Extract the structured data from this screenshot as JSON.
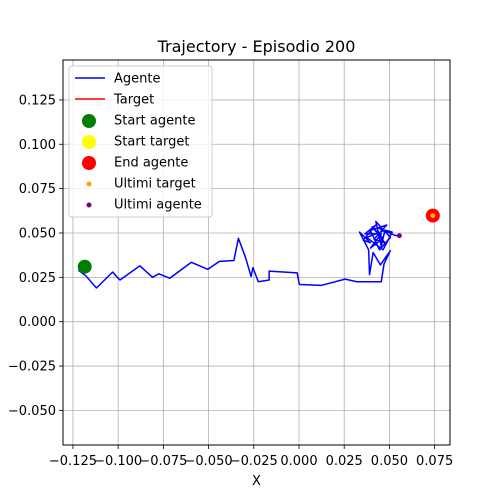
{
  "chart_data": {
    "type": "line",
    "title": "Trajectory - Episodio 200",
    "xlabel": "X",
    "ylabel": "",
    "xlim": [
      -0.1305,
      0.0835
    ],
    "ylim": [
      -0.0695,
      0.1475
    ],
    "grid": true,
    "legend_placement": "top-left",
    "x_ticks": [
      -0.125,
      -0.1,
      -0.075,
      -0.05,
      -0.025,
      0.0,
      0.025,
      0.05,
      0.075
    ],
    "x_tick_labels": [
      "−0.125",
      "−0.100",
      "−0.075",
      "−0.050",
      "−0.025",
      "0.000",
      "0.025",
      "0.050",
      "0.075"
    ],
    "y_ticks": [
      -0.05,
      -0.025,
      0.0,
      0.025,
      0.05,
      0.075,
      0.1,
      0.125
    ],
    "y_tick_labels": [
      "−0.050",
      "−0.025",
      "0.000",
      "0.025",
      "0.050",
      "0.075",
      "0.100",
      "0.125"
    ],
    "legend": [
      {
        "label": "Agente",
        "kind": "line",
        "color": "#0000ff"
      },
      {
        "label": "Target",
        "kind": "line",
        "color": "#ff0000"
      },
      {
        "label": "Start agente",
        "kind": "marker",
        "color": "#008000",
        "size": "large"
      },
      {
        "label": "Start target",
        "kind": "marker",
        "color": "#ffff00",
        "size": "large"
      },
      {
        "label": "End agente",
        "kind": "marker",
        "color": "#ff0000",
        "size": "large"
      },
      {
        "label": "Ultimi target",
        "kind": "marker",
        "color": "#ffa500",
        "size": "small"
      },
      {
        "label": "Ultimi agente",
        "kind": "marker",
        "color": "#800080",
        "size": "small"
      }
    ],
    "series": [
      {
        "name": "Agente",
        "color": "#0000ff",
        "points": [
          [
            -0.122,
            0.029
          ],
          [
            -0.118,
            0.026
          ],
          [
            -0.112,
            0.019
          ],
          [
            -0.108,
            0.023
          ],
          [
            -0.103,
            0.028
          ],
          [
            -0.1005,
            0.025
          ],
          [
            -0.099,
            0.0235
          ],
          [
            -0.088,
            0.0315
          ],
          [
            -0.081,
            0.025
          ],
          [
            -0.0775,
            0.027
          ],
          [
            -0.0715,
            0.0245
          ],
          [
            -0.0595,
            0.0335
          ],
          [
            -0.0505,
            0.0295
          ],
          [
            -0.044,
            0.034
          ],
          [
            -0.036,
            0.0345
          ],
          [
            -0.0335,
            0.047
          ],
          [
            -0.0295,
            0.036
          ],
          [
            -0.0265,
            0.0255
          ],
          [
            -0.0255,
            0.0305
          ],
          [
            -0.0225,
            0.0225
          ],
          [
            -0.0165,
            0.0235
          ],
          [
            -0.0165,
            0.0285
          ],
          [
            -0.001,
            0.0275
          ],
          [
            0.0002,
            0.021
          ],
          [
            0.0125,
            0.0205
          ],
          [
            0.0255,
            0.024
          ],
          [
            0.032,
            0.0225
          ],
          [
            0.0455,
            0.0225
          ],
          [
            0.047,
            0.0325
          ],
          [
            0.0505,
            0.04
          ],
          [
            0.045,
            0.032
          ],
          [
            0.041,
            0.039
          ],
          [
            0.039,
            0.0265
          ],
          [
            0.0385,
            0.0405
          ],
          [
            0.0335,
            0.0505
          ],
          [
            0.0395,
            0.0445
          ],
          [
            0.0355,
            0.046
          ],
          [
            0.0425,
            0.0545
          ],
          [
            0.0365,
            0.0495
          ],
          [
            0.0455,
            0.0495
          ],
          [
            0.0395,
            0.0415
          ],
          [
            0.0465,
            0.047
          ],
          [
            0.0405,
            0.0535
          ],
          [
            0.0475,
            0.0445
          ],
          [
            0.0415,
            0.0465
          ],
          [
            0.0485,
            0.0545
          ],
          [
            0.0395,
            0.0515
          ],
          [
            0.0445,
            0.0405
          ],
          [
            0.0505,
            0.0475
          ],
          [
            0.0425,
            0.0565
          ],
          [
            0.0455,
            0.0425
          ],
          [
            0.0475,
            0.0515
          ],
          [
            0.0375,
            0.0475
          ],
          [
            0.0465,
            0.0405
          ],
          [
            0.0515,
            0.0505
          ],
          [
            0.0445,
            0.0525
          ],
          [
            0.0535,
            0.0485
          ],
          [
            0.0555,
            0.0485
          ]
        ]
      },
      {
        "name": "Target",
        "color": "#ff0000",
        "points": [
          [
            0.0738,
            0.0599
          ],
          [
            0.0742,
            0.0602
          ]
        ]
      }
    ],
    "markers": [
      {
        "name": "Start agente",
        "x": -0.1185,
        "y": 0.031,
        "color": "#008000",
        "size": "large"
      },
      {
        "name": "Start target",
        "x": 0.074,
        "y": 0.0598,
        "color": "#ffff00",
        "size": "large"
      },
      {
        "name": "End agente",
        "x": 0.074,
        "y": 0.0598,
        "color": "#ff0000",
        "size": "large"
      },
      {
        "name": "Ultimi target",
        "x": 0.074,
        "y": 0.0598,
        "color": "#ffa500",
        "size": "small"
      },
      {
        "name": "Ultimi agente",
        "x": 0.0555,
        "y": 0.0485,
        "color": "#800080",
        "size": "small"
      }
    ]
  }
}
